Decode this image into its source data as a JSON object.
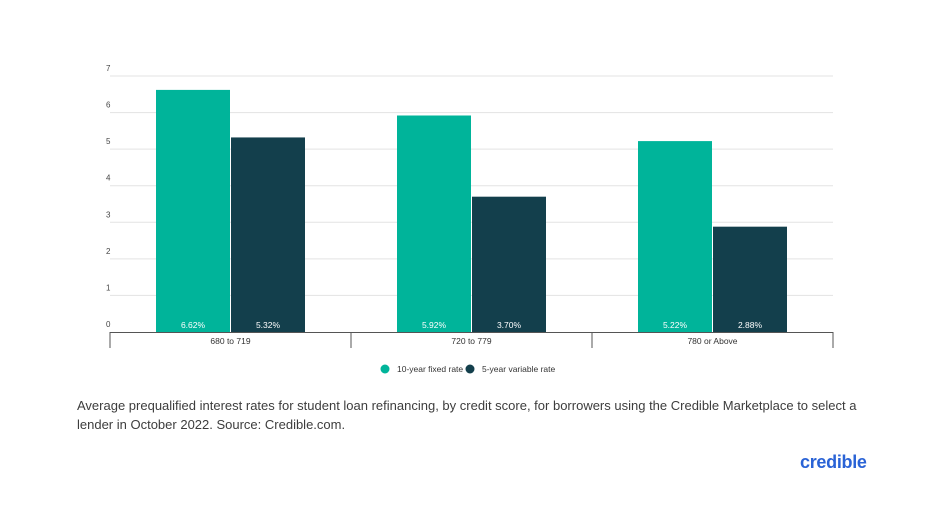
{
  "chart_data": {
    "type": "bar",
    "title": "",
    "xlabel": "",
    "ylabel": "",
    "ylim": [
      0,
      7
    ],
    "yticks": [
      "0",
      "1",
      "2",
      "3",
      "4",
      "5",
      "6",
      "7"
    ],
    "grid": true,
    "legend_position": "bottom",
    "categories": [
      "680 to 719",
      "720 to 779",
      "780 or Above"
    ],
    "series": [
      {
        "name": "10-year fixed rate",
        "color": "#00b49a",
        "values": [
          6.62,
          5.92,
          5.22
        ],
        "labels": [
          "6.62%",
          "5.92%",
          "5.22%"
        ]
      },
      {
        "name": "5-year variable rate",
        "color": "#133f4c",
        "values": [
          5.32,
          3.7,
          2.88
        ],
        "labels": [
          "5.32%",
          "3.70%",
          "2.88%"
        ]
      }
    ]
  },
  "caption": "Average prequalified interest rates for student loan refinancing, by credit score, for borrowers using the Credible Marketplace to select a lender in October 2022. Source: Credible.com.",
  "brand": {
    "logo_text": "credible",
    "color": "#2a63d6"
  }
}
